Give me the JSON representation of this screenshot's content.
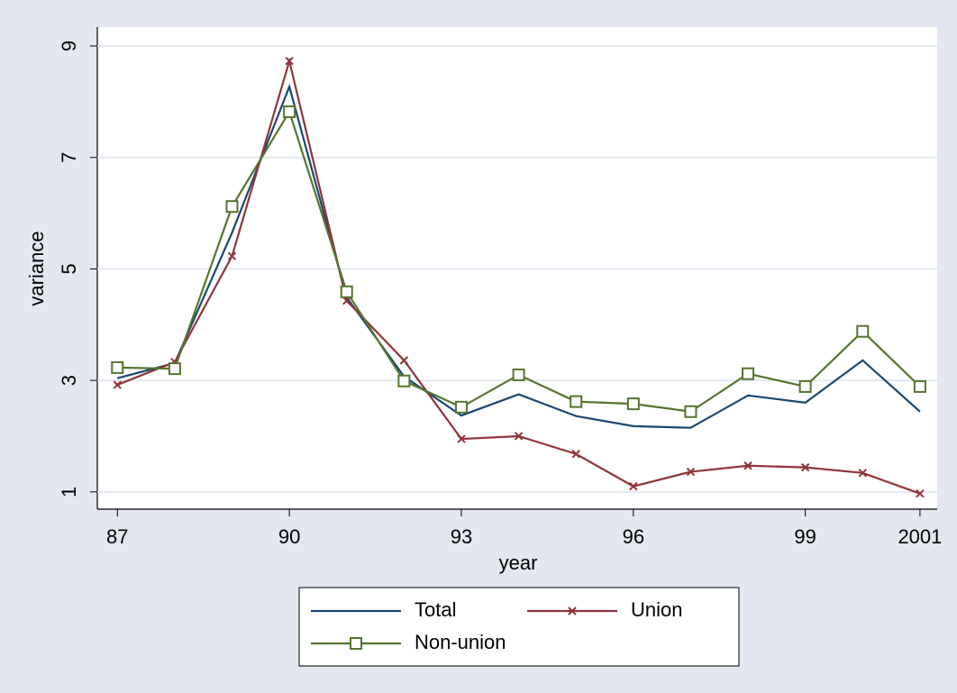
{
  "chart_data": {
    "type": "line",
    "x_label": "year",
    "y_label": "variance",
    "x": [
      1987,
      1988,
      1989,
      1990,
      1991,
      1992,
      1993,
      1994,
      1995,
      1996,
      1997,
      1998,
      1999,
      2000,
      2001
    ],
    "series": [
      {
        "name": "Total",
        "color": "#1a476f",
        "marker": "none",
        "values": [
          3.04,
          3.31,
          5.65,
          8.27,
          4.49,
          3.07,
          2.37,
          2.75,
          2.36,
          2.18,
          2.15,
          2.73,
          2.6,
          3.36,
          2.44
        ]
      },
      {
        "name": "Union",
        "color": "#90353b",
        "marker": "x",
        "values": [
          2.92,
          3.33,
          5.23,
          8.73,
          4.43,
          3.36,
          1.95,
          2.0,
          1.68,
          1.1,
          1.36,
          1.47,
          1.44,
          1.34,
          0.97
        ]
      },
      {
        "name": "Non-union",
        "color": "#55752f",
        "marker": "square",
        "values": [
          3.23,
          3.21,
          6.12,
          7.82,
          4.59,
          2.99,
          2.52,
          3.1,
          2.62,
          2.58,
          2.44,
          3.12,
          2.89,
          3.88,
          2.89
        ]
      }
    ],
    "xlim": [
      1986.65,
      2001.3
    ],
    "xticks": [
      {
        "value": 1987,
        "label": "87"
      },
      {
        "value": 1990,
        "label": "90"
      },
      {
        "value": 1993,
        "label": "93"
      },
      {
        "value": 1996,
        "label": "96"
      },
      {
        "value": 1999,
        "label": "99"
      },
      2001
    ],
    "ylim": [
      0.69,
      9.34
    ],
    "yticks": [
      1,
      3,
      5,
      7,
      9
    ],
    "grid": true,
    "legend": "bottom"
  }
}
